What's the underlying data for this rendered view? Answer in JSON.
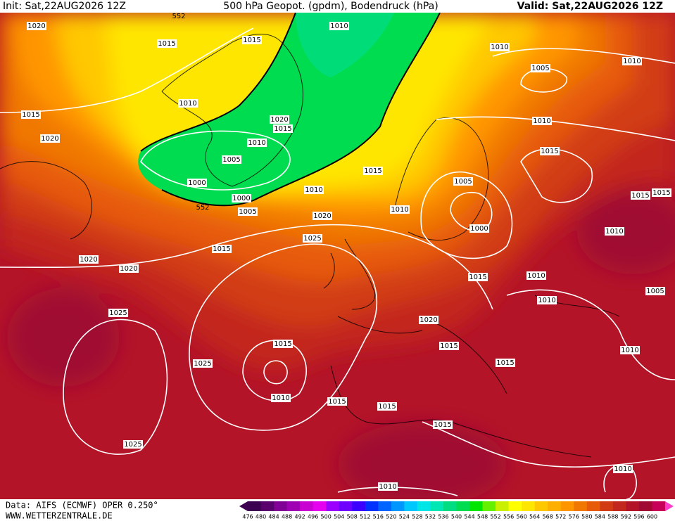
{
  "header": {
    "init": "Init: Sat,22AUG2026 12Z",
    "title": "500 hPa Geopot. (gpdm), Bodendruck (hPa)",
    "valid": "Valid: Sat,22AUG2026 12Z"
  },
  "footer": {
    "source": "Data: AIFS (ECMWF) OPER 0.250°",
    "website": "WWW.WETTERZENTRALE.DE"
  },
  "contour_labels": [
    "552",
    "552"
  ],
  "isobar_labels": [
    "1020",
    "1015",
    "1015",
    "1010",
    "1010",
    "1005",
    "1010",
    "1010",
    "1015",
    "1020",
    "1015",
    "1010",
    "1020",
    "1010",
    "1015",
    "1005",
    "1015",
    "1000",
    "1005",
    "1010",
    "1000",
    "1015",
    "1015",
    "1005",
    "1010",
    "1020",
    "1000",
    "1010",
    "1025",
    "1015",
    "1020",
    "1020",
    "1010",
    "1015",
    "1005",
    "1010",
    "1025",
    "1020",
    "1015",
    "1015",
    "1010",
    "1025",
    "1015",
    "1010",
    "1015",
    "1015",
    "1015",
    "1025",
    "1010",
    "1010"
  ],
  "colorbar": {
    "levels": [
      476,
      480,
      484,
      488,
      492,
      496,
      500,
      504,
      508,
      512,
      516,
      520,
      524,
      528,
      532,
      536,
      540,
      544,
      548,
      552,
      556,
      560,
      564,
      568,
      572,
      576,
      580,
      584,
      588,
      592,
      596,
      600
    ],
    "colors": [
      "#3c0050",
      "#5a006e",
      "#800096",
      "#a000b4",
      "#c800d2",
      "#e600f0",
      "#9b00ff",
      "#6e00ff",
      "#3c00ff",
      "#0032ff",
      "#0064ff",
      "#0096ff",
      "#00c8ff",
      "#00e6e6",
      "#00e6b4",
      "#00dc82",
      "#00dc50",
      "#00e600",
      "#64f000",
      "#c8f000",
      "#ffff00",
      "#ffe600",
      "#ffc800",
      "#ffaf00",
      "#ff9600",
      "#f07800",
      "#e65a0a",
      "#d23c14",
      "#c3281e",
      "#b41428",
      "#a00a32",
      "#c8005a"
    ]
  }
}
